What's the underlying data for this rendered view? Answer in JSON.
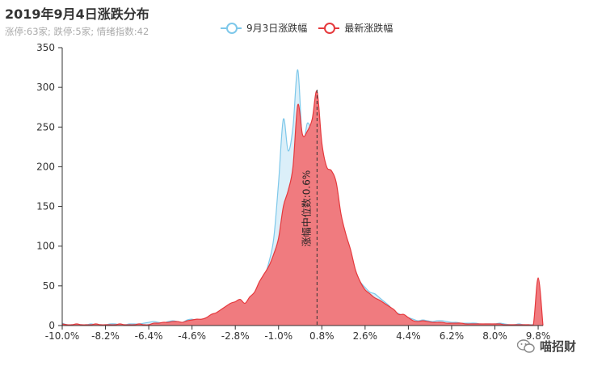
{
  "title": "2019年9月4日涨跌分布",
  "subtitle": "涨停:63家; 跌停:5家; 情绪指数:42",
  "watermark": "喵招财",
  "colors": {
    "prev_line": "#7ec8ea",
    "prev_fill": "#dbeff9",
    "curr_line": "#e5393d",
    "curr_fill": "#f07b7f"
  },
  "chart_data": {
    "type": "area",
    "x": [
      -10.0,
      -9.8,
      -9.6,
      -9.4,
      -9.2,
      -9.0,
      -8.8,
      -8.6,
      -8.4,
      -8.2,
      -8.0,
      -7.8,
      -7.6,
      -7.4,
      -7.2,
      -7.0,
      -6.8,
      -6.6,
      -6.4,
      -6.2,
      -6.0,
      -5.8,
      -5.6,
      -5.4,
      -5.2,
      -5.0,
      -4.8,
      -4.6,
      -4.4,
      -4.2,
      -4.0,
      -3.8,
      -3.6,
      -3.4,
      -3.2,
      -3.0,
      -2.8,
      -2.6,
      -2.4,
      -2.2,
      -2.0,
      -1.8,
      -1.6,
      -1.4,
      -1.2,
      -1.0,
      -0.8,
      -0.6,
      -0.4,
      -0.2,
      0.0,
      0.2,
      0.4,
      0.6,
      0.8,
      1.0,
      1.2,
      1.4,
      1.6,
      1.8,
      2.0,
      2.2,
      2.4,
      2.6,
      2.8,
      3.0,
      3.2,
      3.4,
      3.6,
      3.8,
      4.0,
      4.2,
      4.4,
      4.6,
      4.8,
      5.0,
      5.2,
      5.4,
      5.6,
      5.8,
      6.0,
      6.2,
      6.4,
      6.6,
      6.8,
      7.0,
      7.2,
      7.4,
      7.6,
      7.8,
      8.0,
      8.2,
      8.4,
      8.6,
      8.8,
      9.0,
      9.2,
      9.4,
      9.6,
      9.8,
      10.0
    ],
    "series": [
      {
        "name": "9月3日涨跌幅",
        "values": [
          3,
          1,
          1,
          1,
          1,
          1,
          2,
          1,
          1,
          1,
          2,
          2,
          1,
          1,
          2,
          2,
          2,
          3,
          4,
          5,
          4,
          3,
          5,
          6,
          5,
          4,
          7,
          8,
          6,
          5,
          8,
          10,
          12,
          15,
          18,
          20,
          22,
          26,
          24,
          28,
          35,
          45,
          60,
          80,
          110,
          180,
          260,
          220,
          250,
          322,
          230,
          255,
          240,
          200,
          175,
          165,
          150,
          130,
          115,
          100,
          80,
          65,
          55,
          48,
          42,
          40,
          35,
          30,
          25,
          18,
          15,
          12,
          10,
          8,
          6,
          7,
          6,
          5,
          6,
          6,
          5,
          4,
          4,
          3,
          3,
          3,
          3,
          2,
          2,
          2,
          2,
          3,
          2,
          1,
          1,
          2,
          1,
          1,
          1,
          1,
          1
        ]
      },
      {
        "name": "最新涨跌幅",
        "values": [
          2,
          1,
          1,
          2,
          1,
          1,
          1,
          2,
          1,
          1,
          1,
          1,
          2,
          1,
          1,
          1,
          2,
          1,
          1,
          3,
          3,
          4,
          4,
          5,
          5,
          4,
          6,
          7,
          8,
          8,
          10,
          14,
          16,
          20,
          24,
          28,
          30,
          33,
          28,
          36,
          42,
          55,
          65,
          75,
          90,
          110,
          150,
          170,
          200,
          278,
          240,
          245,
          260,
          295,
          230,
          200,
          195,
          180,
          140,
          115,
          95,
          70,
          55,
          45,
          40,
          35,
          32,
          28,
          24,
          20,
          14,
          14,
          10,
          6,
          5,
          6,
          5,
          4,
          4,
          4,
          3,
          3,
          3,
          3,
          2,
          2,
          2,
          2,
          2,
          2,
          2,
          2,
          1,
          1,
          1,
          1,
          1,
          1,
          1,
          60,
          0
        ]
      }
    ],
    "xlabel": "",
    "ylabel": "",
    "xlim": [
      -10.0,
      10.0
    ],
    "ylim": [
      0,
      350
    ],
    "x_ticks": [
      "-10.0%",
      "-8.2%",
      "-6.4%",
      "-4.6%",
      "-2.8%",
      "-1.0%",
      "0.8%",
      "2.6%",
      "4.4%",
      "6.2%",
      "8.0%",
      "9.8%"
    ],
    "x_tick_values": [
      -10.0,
      -8.2,
      -6.4,
      -4.6,
      -2.8,
      -1.0,
      0.8,
      2.6,
      4.4,
      6.2,
      8.0,
      9.8
    ],
    "y_ticks": [
      0,
      50,
      100,
      150,
      200,
      250,
      300,
      350
    ],
    "median_line": {
      "value": 0.6,
      "label": "涨幅中位数:0.6%"
    },
    "grid": false,
    "legend_position": "top-center"
  }
}
